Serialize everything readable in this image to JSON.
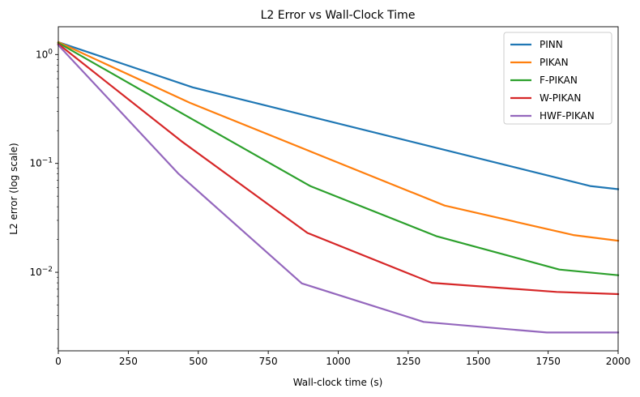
{
  "chart_data": {
    "type": "line",
    "title": "L2 Error vs Wall-Clock Time",
    "xlabel": "Wall-clock time (s)",
    "ylabel": "L2 error (log scale)",
    "xlim": [
      0,
      2000
    ],
    "ylim": [
      0.0019,
      1.8
    ],
    "yscale": "log",
    "grid": false,
    "legend_position": "top-right",
    "x_ticks": [
      0,
      250,
      500,
      750,
      1000,
      1250,
      1500,
      1750,
      2000
    ],
    "y_ticks": [
      {
        "value": 0.01,
        "base": "10",
        "exp": "−2"
      },
      {
        "value": 0.1,
        "base": "10",
        "exp": "−1"
      },
      {
        "value": 1,
        "base": "10",
        "exp": "0"
      }
    ],
    "series": [
      {
        "name": "PINN",
        "color": "#1f77b4",
        "x": [
          0,
          480,
          1900,
          2000
        ],
        "y": [
          1.3,
          0.5,
          0.062,
          0.058
        ]
      },
      {
        "name": "PIKAN",
        "color": "#ff7f0e",
        "x": [
          0,
          470,
          1380,
          1840,
          2000
        ],
        "y": [
          1.3,
          0.36,
          0.041,
          0.022,
          0.0195
        ]
      },
      {
        "name": "F-PIKAN",
        "color": "#2ca02c",
        "x": [
          0,
          450,
          900,
          1350,
          1790,
          2000
        ],
        "y": [
          1.28,
          0.28,
          0.062,
          0.0215,
          0.0106,
          0.0094
        ]
      },
      {
        "name": "W-PIKAN",
        "color": "#d62728",
        "x": [
          0,
          440,
          890,
          1335,
          1780,
          2000
        ],
        "y": [
          1.25,
          0.16,
          0.023,
          0.008,
          0.0066,
          0.0063
        ]
      },
      {
        "name": "HWF-PIKAN",
        "color": "#9467bd",
        "x": [
          0,
          430,
          870,
          1305,
          1745,
          2000
        ],
        "y": [
          1.22,
          0.08,
          0.0079,
          0.0035,
          0.0028,
          0.0028
        ]
      }
    ]
  }
}
